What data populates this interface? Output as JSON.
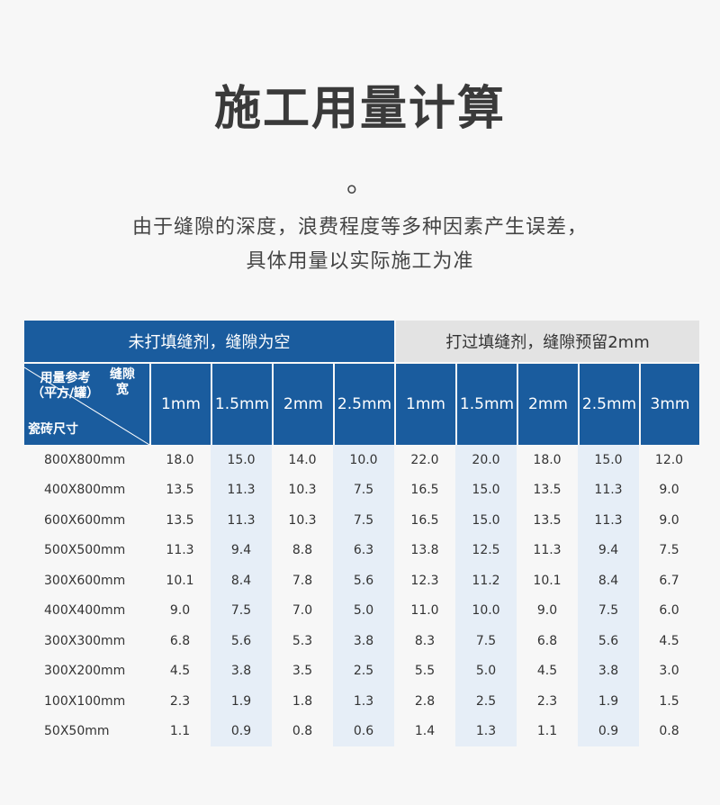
{
  "title": "施工用量计算",
  "dot": "。",
  "subtitle_line1": "由于缝隙的深度，浪费程度等多种因素产生误差，",
  "subtitle_line2": "具体用量以实际施工为准",
  "table": {
    "group_a": "未打填缝剂，缝隙为空",
    "group_b": "打过填缝剂，缝隙预留2mm",
    "corner_ref_line1": "用量参考",
    "corner_ref_line2": "（平方/罐）",
    "corner_gap_line1": "缝隙",
    "corner_gap_line2": "宽",
    "corner_tile": "瓷砖尺寸",
    "columns": [
      "1mm",
      "1.5mm",
      "2mm",
      "2.5mm",
      "1mm",
      "1.5mm",
      "2mm",
      "2.5mm",
      "3mm"
    ],
    "rows": [
      {
        "label": "800X800mm",
        "values": [
          "18.0",
          "15.0",
          "14.0",
          "10.0",
          "22.0",
          "20.0",
          "18.0",
          "15.0",
          "12.0"
        ]
      },
      {
        "label": "400X800mm",
        "values": [
          "13.5",
          "11.3",
          "10.3",
          "7.5",
          "16.5",
          "15.0",
          "13.5",
          "11.3",
          "9.0"
        ]
      },
      {
        "label": "600X600mm",
        "values": [
          "13.5",
          "11.3",
          "10.3",
          "7.5",
          "16.5",
          "15.0",
          "13.5",
          "11.3",
          "9.0"
        ]
      },
      {
        "label": "500X500mm",
        "values": [
          "11.3",
          "9.4",
          "8.8",
          "6.3",
          "13.8",
          "12.5",
          "11.3",
          "9.4",
          "7.5"
        ]
      },
      {
        "label": "300X600mm",
        "values": [
          "10.1",
          "8.4",
          "7.8",
          "5.6",
          "12.3",
          "11.2",
          "10.1",
          "8.4",
          "6.7"
        ]
      },
      {
        "label": "400X400mm",
        "values": [
          "9.0",
          "7.5",
          "7.0",
          "5.0",
          "11.0",
          "10.0",
          "9.0",
          "7.5",
          "6.0"
        ]
      },
      {
        "label": "300X300mm",
        "values": [
          "6.8",
          "5.6",
          "5.3",
          "3.8",
          "8.3",
          "7.5",
          "6.8",
          "5.6",
          "4.5"
        ]
      },
      {
        "label": "300X200mm",
        "values": [
          "4.5",
          "3.8",
          "3.5",
          "2.5",
          "5.5",
          "5.0",
          "4.5",
          "3.8",
          "3.0"
        ]
      },
      {
        "label": "100X100mm",
        "values": [
          "2.3",
          "1.9",
          "1.8",
          "1.3",
          "2.8",
          "2.5",
          "2.3",
          "1.9",
          "1.5"
        ]
      },
      {
        "label": "50X50mm",
        "values": [
          "1.1",
          "0.9",
          "0.8",
          "0.6",
          "1.4",
          "1.3",
          "1.1",
          "0.9",
          "0.8"
        ]
      }
    ]
  }
}
